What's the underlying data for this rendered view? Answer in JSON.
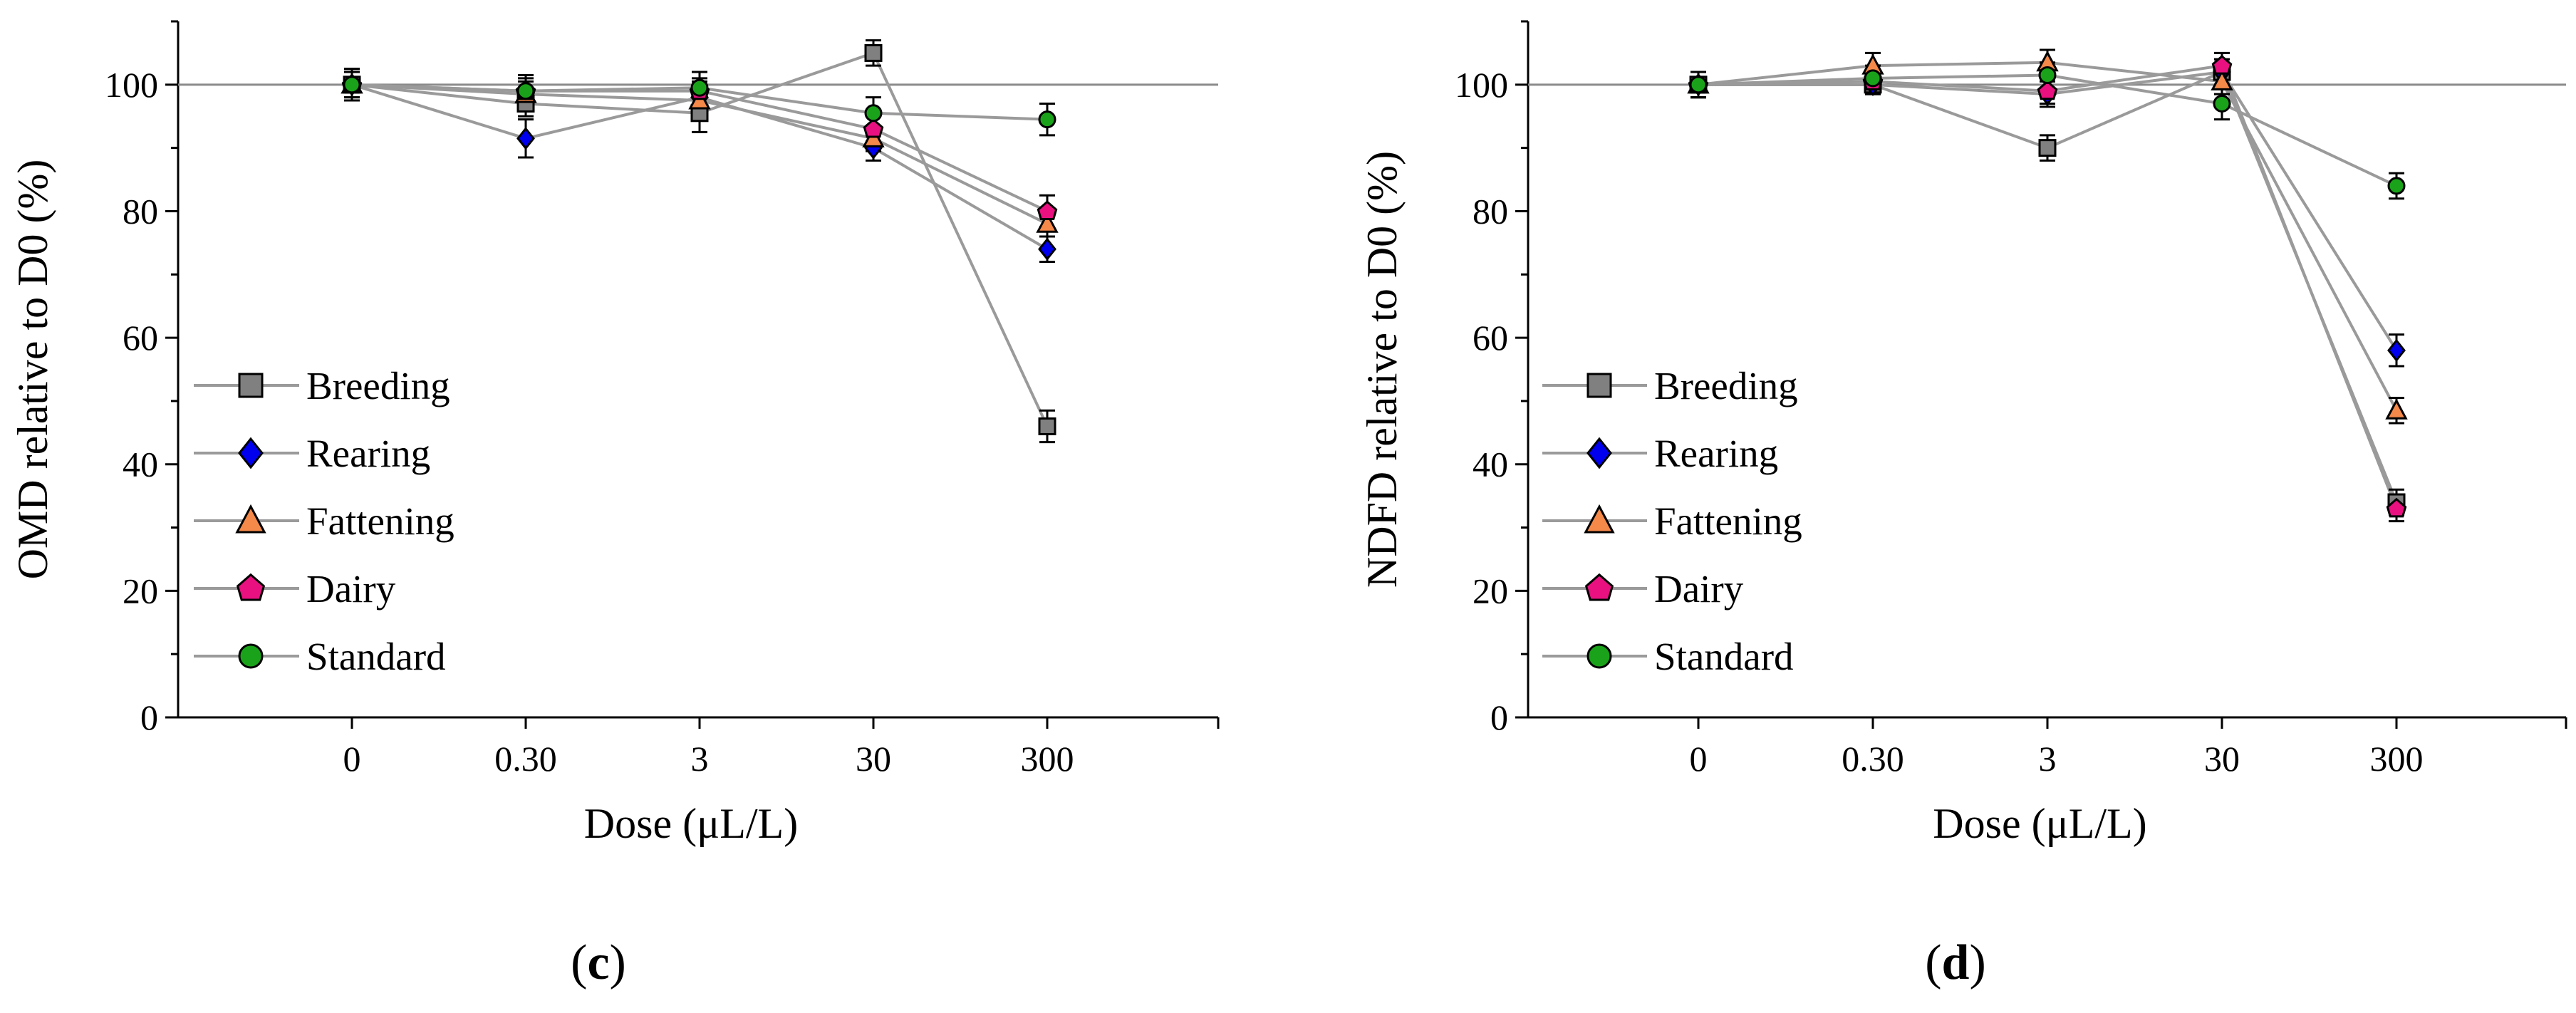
{
  "chart_data": [
    {
      "type": "line",
      "panel_label": "c",
      "xlabel": "Dose (μL/L)",
      "ylabel": "OMD relative to D0 (%)",
      "categories": [
        "0",
        "0.30",
        "3",
        "30",
        "300"
      ],
      "ylim": [
        0,
        110
      ],
      "yticks": [
        "0",
        "20",
        "40",
        "60",
        "80",
        "100"
      ],
      "reference_line": 100,
      "legend_position": "lower-left",
      "series": [
        {
          "name": "Breeding",
          "marker": "square",
          "color": "#808080",
          "values": [
            100,
            97,
            95.5,
            105,
            46
          ],
          "errors": [
            2.5,
            2,
            3,
            2,
            2.5
          ]
        },
        {
          "name": "Rearing",
          "marker": "diamond",
          "color": "#0000ee",
          "values": [
            100,
            91.5,
            98,
            90,
            74
          ],
          "errors": [
            2.5,
            3,
            2.5,
            2,
            2
          ]
        },
        {
          "name": "Fattening",
          "marker": "triangle",
          "color": "#f4894a",
          "values": [
            100,
            98.5,
            97.5,
            91.5,
            78
          ],
          "errors": [
            2,
            2,
            2,
            2,
            2
          ]
        },
        {
          "name": "Dairy",
          "marker": "pentagon",
          "color": "#e8117f",
          "values": [
            100,
            99,
            99,
            93,
            80
          ],
          "errors": [
            2,
            2,
            2,
            2,
            2.5
          ]
        },
        {
          "name": "Standard",
          "marker": "circle",
          "color": "#1aa31a",
          "values": [
            100,
            99,
            99.5,
            95.5,
            94.5
          ],
          "errors": [
            2.5,
            2.5,
            2.5,
            2.5,
            2.5
          ]
        }
      ]
    },
    {
      "type": "line",
      "panel_label": "d",
      "xlabel": "Dose (μL/L)",
      "ylabel": "NDFD relative to D0 (%)",
      "categories": [
        "0",
        "0.30",
        "3",
        "30",
        "300"
      ],
      "ylim": [
        0,
        110
      ],
      "yticks": [
        "0",
        "20",
        "40",
        "60",
        "80",
        "100"
      ],
      "reference_line": 100,
      "legend_position": "lower-left",
      "series": [
        {
          "name": "Breeding",
          "marker": "square",
          "color": "#808080",
          "values": [
            100,
            100,
            90,
            102,
            34
          ],
          "errors": [
            2,
            1.5,
            2,
            2,
            2
          ]
        },
        {
          "name": "Rearing",
          "marker": "diamond",
          "color": "#0000ee",
          "values": [
            100,
            100,
            98.5,
            102,
            58
          ],
          "errors": [
            2,
            1.5,
            2,
            2,
            2.5
          ]
        },
        {
          "name": "Fattening",
          "marker": "triangle",
          "color": "#f4894a",
          "values": [
            100,
            103,
            103.5,
            100.5,
            48.5
          ],
          "errors": [
            2,
            2,
            2,
            2,
            2
          ]
        },
        {
          "name": "Dairy",
          "marker": "pentagon",
          "color": "#e8117f",
          "values": [
            100,
            100.5,
            99,
            103,
            33
          ],
          "errors": [
            2,
            1.5,
            2,
            2,
            2
          ]
        },
        {
          "name": "Standard",
          "marker": "circle",
          "color": "#1aa31a",
          "values": [
            100,
            101,
            101.5,
            97,
            84
          ],
          "errors": [
            2,
            2,
            2,
            2.5,
            2
          ]
        }
      ]
    }
  ]
}
